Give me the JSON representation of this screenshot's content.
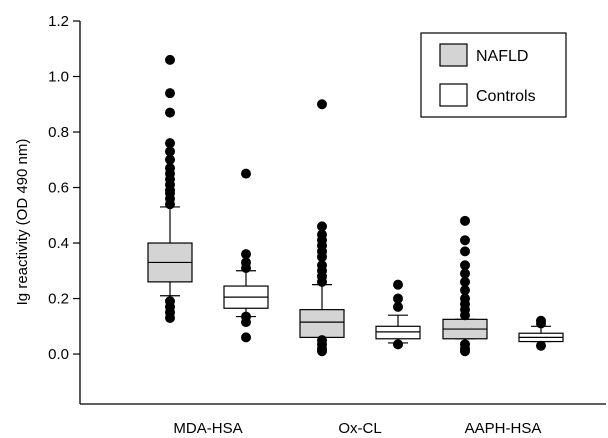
{
  "chart_data": {
    "type": "box",
    "ylabel": "Ig reactivity (OD 490 nm)",
    "xlabel": "",
    "ylim": [
      -0.18,
      1.2
    ],
    "yticks": [
      "0.0",
      "0.2",
      "0.4",
      "0.6",
      "0.8",
      "1.0",
      "1.2"
    ],
    "categories": [
      "MDA-HSA",
      "Ox-CL",
      "AAPH-HSA"
    ],
    "legend_position": "top-right",
    "series": [
      {
        "name": "NAFLD",
        "color": "#d4d4d4",
        "boxes": [
          {
            "whisker_low": 0.21,
            "q1": 0.26,
            "median": 0.33,
            "q3": 0.4,
            "whisker_high": 0.53,
            "outliers": [
              0.13,
              0.15,
              0.17,
              0.19,
              0.54,
              0.56,
              0.58,
              0.59,
              0.61,
              0.63,
              0.65,
              0.67,
              0.7,
              0.73,
              0.76,
              0.87,
              0.94,
              1.06
            ]
          },
          {
            "whisker_low": 0.06,
            "q1": 0.06,
            "median": 0.115,
            "q3": 0.16,
            "whisker_high": 0.25,
            "outliers": [
              0.01,
              0.02,
              0.035,
              0.05,
              0.26,
              0.28,
              0.3,
              0.32,
              0.35,
              0.37,
              0.39,
              0.41,
              0.43,
              0.46,
              0.9
            ]
          },
          {
            "whisker_low": 0.055,
            "q1": 0.055,
            "median": 0.09,
            "q3": 0.125,
            "whisker_high": 0.125,
            "outliers": [
              0.01,
              0.02,
              0.035,
              0.14,
              0.16,
              0.18,
              0.2,
              0.23,
              0.26,
              0.29,
              0.32,
              0.37,
              0.41,
              0.48
            ]
          }
        ]
      },
      {
        "name": "Controls",
        "color": "#ffffff",
        "boxes": [
          {
            "whisker_low": 0.135,
            "q1": 0.165,
            "median": 0.205,
            "q3": 0.245,
            "whisker_high": 0.3,
            "outliers": [
              0.06,
              0.115,
              0.135,
              0.31,
              0.33,
              0.36,
              0.65
            ]
          },
          {
            "whisker_low": 0.04,
            "q1": 0.055,
            "median": 0.08,
            "q3": 0.1,
            "whisker_high": 0.14,
            "outliers": [
              0.035,
              0.17,
              0.2,
              0.25
            ]
          },
          {
            "whisker_low": 0.045,
            "q1": 0.045,
            "median": 0.06,
            "q3": 0.075,
            "whisker_high": 0.1,
            "outliers": [
              0.03,
              0.11,
              0.12
            ]
          }
        ]
      }
    ]
  }
}
